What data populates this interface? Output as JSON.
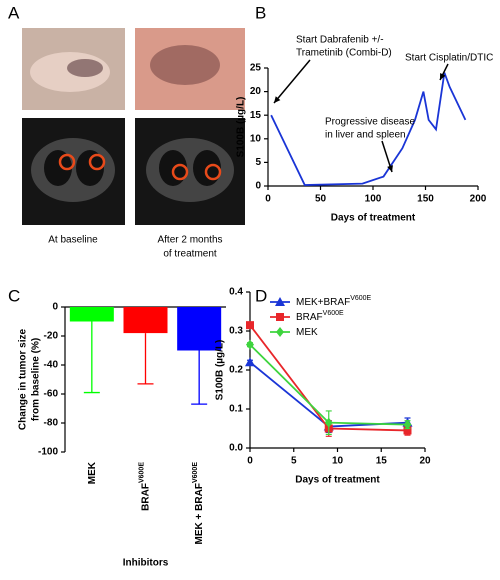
{
  "panel_labels": [
    "A",
    "B",
    "C",
    "D"
  ],
  "panel_a": {
    "captions": [
      [
        "At baseline"
      ],
      [
        "After 2 months",
        "of treatment"
      ]
    ]
  },
  "chart_data": [
    {
      "type": "line",
      "x": [
        3,
        35,
        90,
        110,
        128,
        140,
        148,
        153,
        160,
        168,
        173,
        188
      ],
      "values": [
        15,
        0.2,
        0.5,
        2,
        8,
        14,
        20,
        14,
        12,
        24,
        21,
        14
      ],
      "color": "#1a35d6",
      "xlim": [
        0,
        200
      ],
      "xticks": [
        0,
        50,
        100,
        150,
        200
      ],
      "ylim": [
        0,
        25
      ],
      "yticks": [
        0,
        5,
        10,
        15,
        20,
        25
      ],
      "xlabel": "Days of treatment",
      "ylabel": "S100B (µg/L)",
      "annotations": [
        {
          "lines": [
            "Start Dabrafenib +/-",
            "Trametinib (Combi-D)"
          ]
        },
        {
          "lines": [
            "Progressive disease",
            "in liver and spleen"
          ]
        },
        {
          "lines": [
            "Start Cisplatin/DTIC"
          ]
        }
      ]
    },
    {
      "type": "bar",
      "categories": [
        [
          "MEK"
        ],
        [
          "BRAF",
          "V600E"
        ],
        [
          "MEK + BRAF",
          "V600E"
        ]
      ],
      "values": [
        -10,
        -18,
        -30
      ],
      "errors": [
        49,
        35,
        37
      ],
      "colors": [
        "#00ff00",
        "#ff0000",
        "#0000ff"
      ],
      "ylim": [
        -100,
        0
      ],
      "yticks": [
        0,
        -20,
        -40,
        -60,
        -80,
        -100
      ],
      "xlabel": "Inhibitors",
      "ylabel": [
        "Change in tumor size",
        "from baseline (%)"
      ]
    },
    {
      "type": "line",
      "x": [
        0,
        9,
        18
      ],
      "series": [
        {
          "name": [
            "MEK+BRAF",
            "V600E"
          ],
          "color": "#1a35d6",
          "marker": "triangle",
          "values": [
            0.22,
            0.055,
            0.065
          ],
          "errors": [
            0.005,
            0.015,
            0.012
          ]
        },
        {
          "name": [
            "BRAF",
            "V600E"
          ],
          "color": "#e8262a",
          "marker": "square",
          "values": [
            0.315,
            0.05,
            0.045
          ],
          "errors": [
            0.005,
            0.02,
            0.012
          ]
        },
        {
          "name": [
            "MEK"
          ],
          "color": "#3ed43e",
          "marker": "diamond",
          "values": [
            0.265,
            0.065,
            0.06
          ],
          "errors": [
            0.005,
            0.03,
            0.01
          ]
        }
      ],
      "xlim": [
        0,
        20
      ],
      "xticks": [
        0,
        5,
        10,
        15,
        20
      ],
      "ylim": [
        0,
        0.4
      ],
      "yticks": [
        {
          "value": 0,
          "label": "0.0"
        },
        0.1,
        0.2,
        0.3,
        0.4
      ],
      "xlabel": "Days of treatment",
      "ylabel": "S100B (µg/L)",
      "legend": "top-right"
    }
  ]
}
